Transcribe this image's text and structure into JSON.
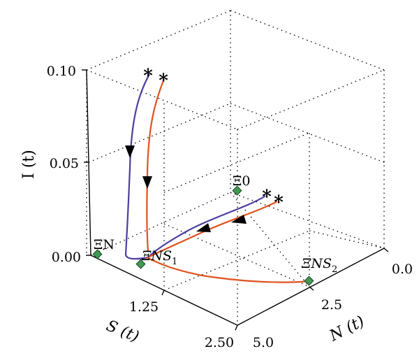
{
  "chart_data": {
    "type": "line",
    "projection": "3d",
    "axes": {
      "N": {
        "label": "N",
        "arg": "(t)",
        "ticks": [
          "0.0",
          "2.5",
          "5.0"
        ],
        "range": [
          0,
          5
        ]
      },
      "S": {
        "label": "S",
        "arg": "(t)",
        "ticks": [
          "1.25",
          "2.50"
        ],
        "range": [
          0,
          2.5
        ]
      },
      "I": {
        "label": "I",
        "arg": "(t)",
        "ticks": [
          "0.00",
          "0.05",
          "0.10"
        ],
        "range": [
          0,
          0.1
        ]
      }
    },
    "grid": true,
    "colors": {
      "series_a": "#4a3f9e",
      "series_b": "#e0521e",
      "equilibrium_marker": "#3f9a54"
    },
    "equilibria": [
      {
        "label": "Ξ0",
        "sub": "",
        "italic": false,
        "N": 2.3,
        "S": 0.0,
        "I": 0.018
      },
      {
        "label": "ΞN",
        "sub": "",
        "italic": false,
        "N": 5.0,
        "S": 0.0,
        "I": 0.0
      },
      {
        "label": "ΞNS",
        "sub": "1",
        "italic": true,
        "N": 4.0,
        "S": 1.0,
        "I": 0.0
      },
      {
        "label": "ΞNS",
        "sub": "2",
        "italic": true,
        "N": 0.5,
        "S": 2.45,
        "I": 0.0
      }
    ],
    "start_marker": "*"
  }
}
